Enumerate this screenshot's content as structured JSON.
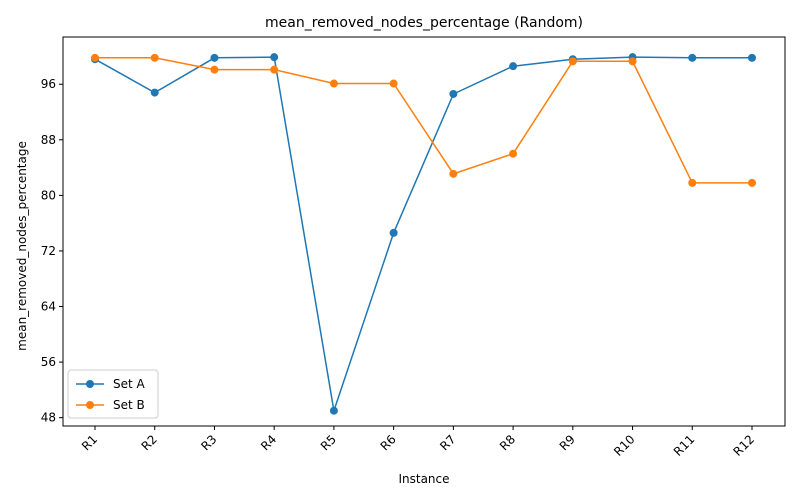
{
  "chart_data": {
    "type": "line",
    "title": "mean_removed_nodes_percentage (Random)",
    "xlabel": "Instance",
    "ylabel": "mean_removed_nodes_percentage",
    "categories": [
      "R1",
      "R2",
      "R3",
      "R4",
      "R5",
      "R6",
      "R7",
      "R8",
      "R9",
      "R10",
      "R11",
      "R12"
    ],
    "yticks": [
      48,
      56,
      64,
      72,
      80,
      88,
      96
    ],
    "ylim": [
      46.8,
      102.8
    ],
    "grid": false,
    "legend_position": "lower-left",
    "series": [
      {
        "name": "Set A",
        "color": "#1f77b4",
        "values": [
          99.6,
          94.8,
          99.8,
          99.9,
          49.0,
          74.6,
          94.6,
          98.6,
          99.6,
          99.9,
          99.8,
          99.8
        ]
      },
      {
        "name": "Set B",
        "color": "#ff7f0e",
        "values": [
          99.8,
          99.8,
          98.1,
          98.1,
          96.1,
          96.1,
          83.1,
          86.0,
          99.3,
          99.3,
          81.8,
          81.8
        ]
      }
    ]
  }
}
